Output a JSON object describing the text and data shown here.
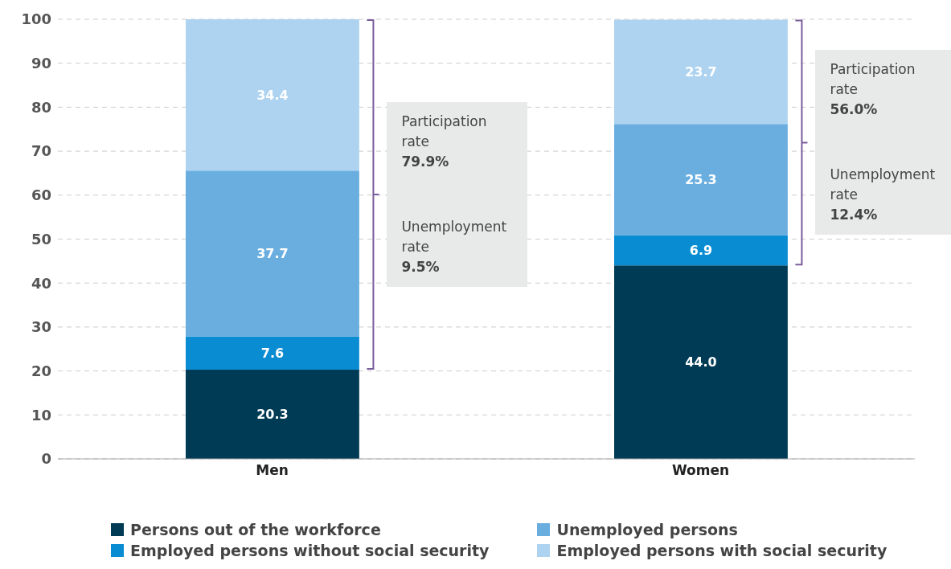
{
  "chart_data": {
    "type": "bar",
    "stacked": true,
    "categories": [
      "Men",
      "Women"
    ],
    "series": [
      {
        "name": "Persons out of the workforce",
        "color": "#003b56",
        "values": [
          20.3,
          44.0
        ],
        "value_labels": [
          "20.3",
          "44.0"
        ]
      },
      {
        "name": "Employed persons without social security",
        "color": "#0a8cd2",
        "values": [
          7.6,
          6.9
        ],
        "value_labels": [
          "7.6",
          "6.9"
        ]
      },
      {
        "name": "Unemployed persons",
        "color": "#6aaee0",
        "values": [
          37.7,
          25.3
        ],
        "value_labels": [
          "37.7",
          "25.3"
        ]
      },
      {
        "name": "Employed persons with social security",
        "color": "#aed3f0",
        "values": [
          34.4,
          23.7
        ],
        "value_labels": [
          "34.4",
          "23.7"
        ]
      }
    ],
    "ylim": [
      0,
      100
    ],
    "yticks": [
      0,
      10,
      20,
      30,
      40,
      50,
      60,
      70,
      80,
      90,
      100
    ],
    "grid": "y",
    "legend": "bottom",
    "annotations": [
      "Participation rate\n79.9%",
      "Unemployment rate\n9.5%",
      "Participation rate\n56.0%",
      "Unemployment rate\n12.4%"
    ]
  }
}
